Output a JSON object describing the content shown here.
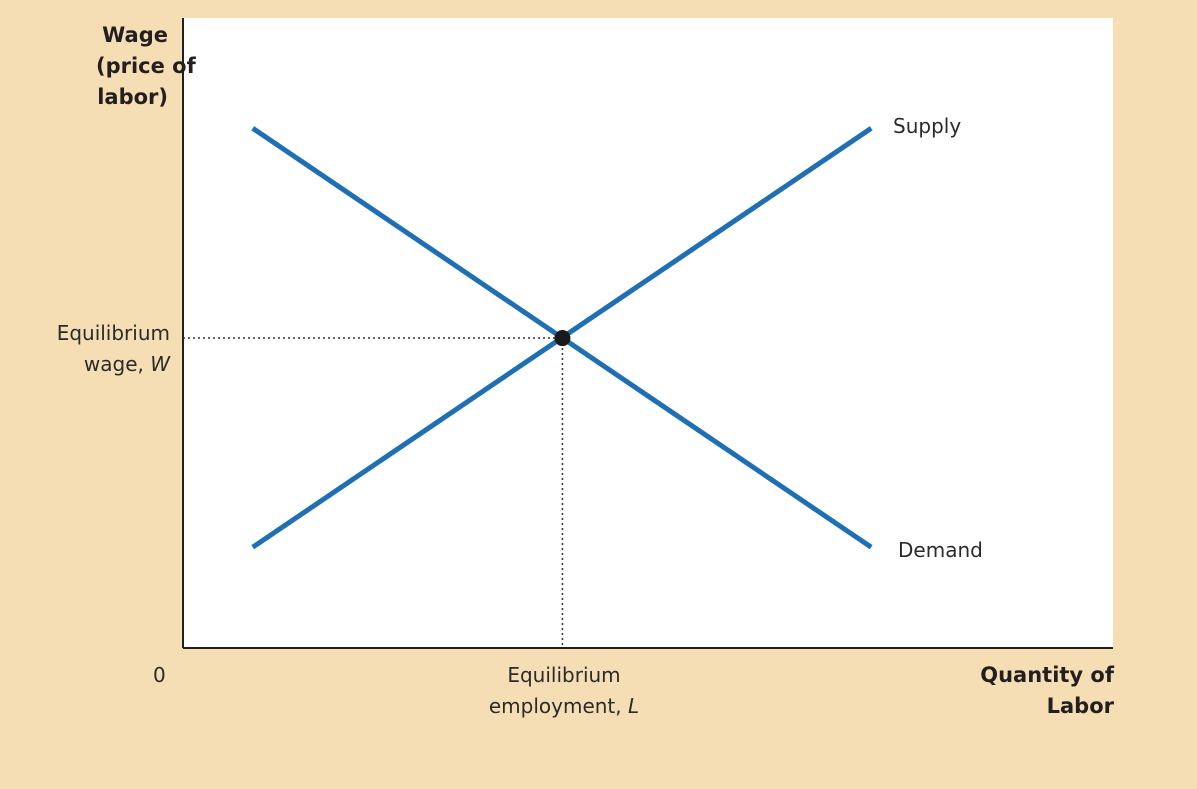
{
  "chart_data": {
    "type": "line",
    "title": "",
    "ylabel_lines": [
      "Wage",
      "(price of",
      "labor)"
    ],
    "xlabel_lines": [
      "Quantity of",
      "Labor"
    ],
    "origin_label": "0",
    "xlim": [
      0,
      10
    ],
    "ylim": [
      0,
      10
    ],
    "grid": false,
    "series": [
      {
        "name": "Supply",
        "x": [
          0.75,
          7.4
        ],
        "y": [
          1.6,
          8.25
        ],
        "color": "#1f6fb4"
      },
      {
        "name": "Demand",
        "x": [
          0.75,
          7.4
        ],
        "y": [
          8.25,
          1.6
        ],
        "color": "#1f6fb4"
      }
    ],
    "equilibrium": {
      "x": 4.08,
      "y": 4.92,
      "y_label": {
        "line1": "Equilibrium",
        "line2_text": "wage, ",
        "line2_var": "W"
      },
      "x_label": {
        "line1": "Equilibrium",
        "line2_text": "employment, ",
        "line2_var": "L"
      }
    },
    "colors": {
      "frame": "#f5deb3",
      "plot": "#ffffff",
      "curve": "#1f6fb4",
      "axis": "#231f20"
    }
  }
}
